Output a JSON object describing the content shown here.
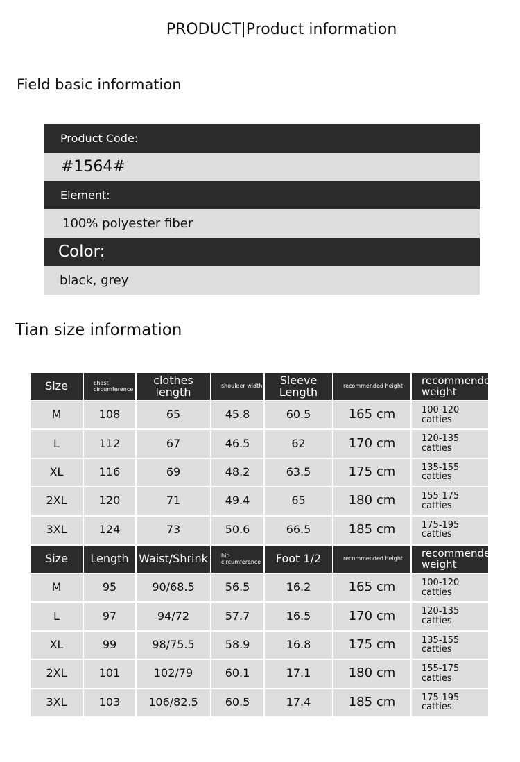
{
  "header": {
    "title": "PRODUCT|Product information"
  },
  "basic": {
    "title": "Field basic information",
    "rows": [
      {
        "label": "Product Code:",
        "value": "#1564#"
      },
      {
        "label": "Element:",
        "value": "100% polyester fiber"
      },
      {
        "label": "Color:",
        "value": "black, grey"
      }
    ]
  },
  "size": {
    "title": "Tian size information",
    "tables": [
      {
        "columns": [
          "Size",
          "chest circumference",
          "clothes length",
          "shoulder width",
          "Sleeve Length",
          "recommended height",
          "recommended weight"
        ],
        "rows": [
          [
            "M",
            108,
            65,
            45.8,
            60.5,
            "165 cm",
            "100-120 catties"
          ],
          [
            "L",
            112,
            67,
            46.5,
            62,
            "170 cm",
            "120-135 catties"
          ],
          [
            "XL",
            116,
            69,
            48.2,
            63.5,
            "175 cm",
            "135-155 catties"
          ],
          [
            "2XL",
            120,
            71,
            49.4,
            65,
            "180 cm",
            "155-175 catties"
          ],
          [
            "3XL",
            124,
            73,
            50.6,
            66.5,
            "185 cm",
            "175-195 catties"
          ]
        ]
      },
      {
        "columns": [
          "Size",
          "Length",
          "Waist/Shrink",
          "hip circumference",
          "Foot 1/2",
          "recommended height",
          "recommended weight"
        ],
        "rows": [
          [
            "M",
            95,
            "90/68.5",
            56.5,
            16.2,
            "165 cm",
            "100-120 catties"
          ],
          [
            "L",
            97,
            "94/72",
            57.7,
            16.5,
            "170 cm",
            "120-135 catties"
          ],
          [
            "XL",
            99,
            "98/75.5",
            58.9,
            16.8,
            "175 cm",
            "135-155 catties"
          ],
          [
            "2XL",
            101,
            "102/79",
            60.1,
            17.1,
            "180 cm",
            "155-175 catties"
          ],
          [
            "3XL",
            103,
            "106/82.5",
            60.5,
            17.4,
            "185 cm",
            "175-195 catties"
          ]
        ]
      }
    ]
  }
}
